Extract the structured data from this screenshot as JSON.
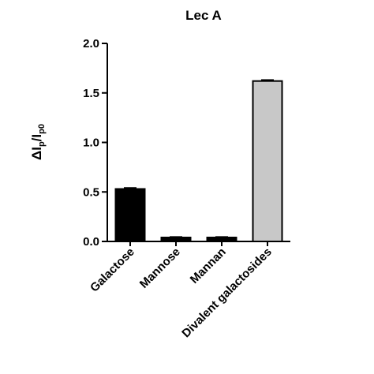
{
  "chart_data": {
    "type": "bar",
    "title": "Lec A",
    "ylabel": {
      "main": "ΔI",
      "sub1": "p",
      "sep": "/I",
      "sub2": "p0"
    },
    "xlabel": "",
    "ylim": [
      0,
      2.0
    ],
    "yticks": [
      0.0,
      0.5,
      1.0,
      1.5,
      2.0
    ],
    "ytick_labels": [
      "0.0",
      "0.5",
      "1.0",
      "1.5",
      "2.0"
    ],
    "categories": [
      "Galactose",
      "Mannose",
      "Mannan",
      "Divalent galactosides"
    ],
    "values": [
      0.53,
      0.04,
      0.04,
      1.62
    ],
    "errors": [
      0.01,
      0.005,
      0.005,
      0.01
    ],
    "colors": [
      "#000000",
      "#000000",
      "#000000",
      "#c8c8c8"
    ],
    "grid": false,
    "legend": "none"
  }
}
